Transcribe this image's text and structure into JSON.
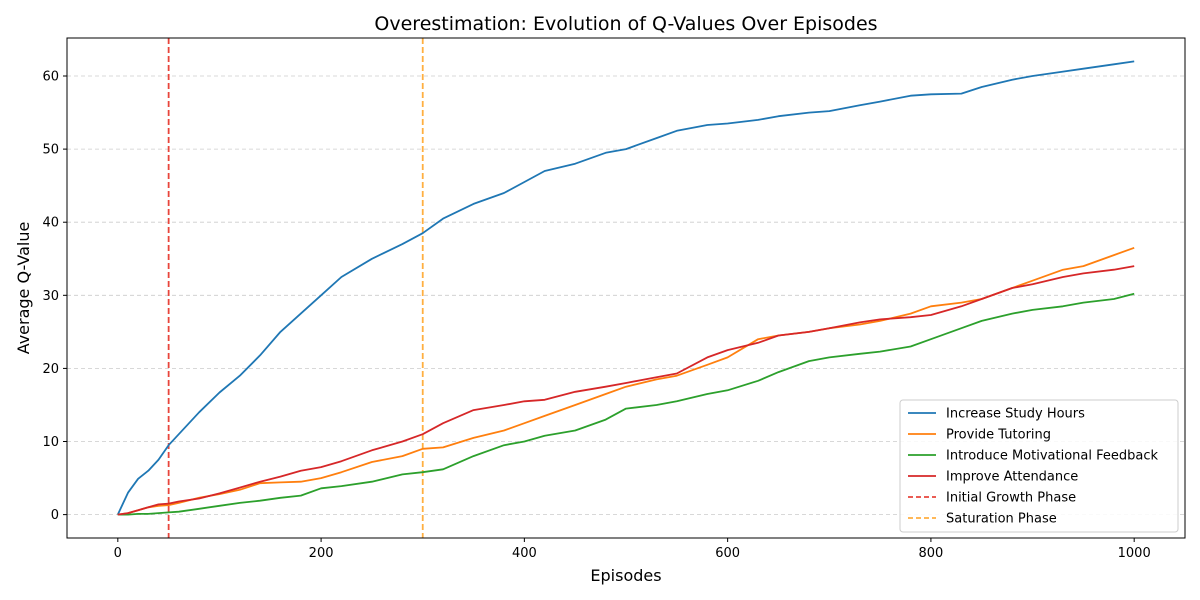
{
  "chart_data": {
    "type": "line",
    "title": "Overestimation: Evolution of Q-Values Over Episodes",
    "xlabel": "Episodes",
    "ylabel": "Average Q-Value",
    "xlim": [
      -50,
      1050
    ],
    "ylim": [
      -3.2,
      65.2
    ],
    "xticks": [
      0,
      200,
      400,
      600,
      800,
      1000
    ],
    "yticks": [
      0,
      10,
      20,
      30,
      40,
      50,
      60
    ],
    "grid": "y-dashed",
    "legend_position": "lower-right",
    "x": [
      0,
      10,
      20,
      30,
      40,
      50,
      60,
      80,
      100,
      120,
      140,
      160,
      180,
      200,
      220,
      250,
      280,
      300,
      320,
      350,
      380,
      400,
      420,
      450,
      480,
      500,
      530,
      550,
      580,
      600,
      630,
      650,
      680,
      700,
      730,
      750,
      780,
      800,
      830,
      850,
      880,
      900,
      930,
      950,
      980,
      1000
    ],
    "series": [
      {
        "name": "Increase Study Hours",
        "color": "#1f77b4",
        "style": "solid",
        "values": [
          0,
          3,
          4.9,
          6,
          7.5,
          9.5,
          11,
          14,
          16.7,
          19,
          21.8,
          25,
          27.5,
          30,
          32.5,
          35,
          37,
          38.5,
          40.5,
          42.5,
          44,
          45.5,
          47,
          48,
          49.5,
          50,
          51.5,
          52.5,
          53.3,
          53.5,
          54,
          54.5,
          55,
          55.2,
          56,
          56.5,
          57.3,
          57.5,
          57.6,
          58.5,
          59.5,
          60,
          60.6,
          61,
          61.6,
          62
        ]
      },
      {
        "name": "Provide Tutoring",
        "color": "#ff7f0e",
        "style": "solid",
        "values": [
          0,
          0.2,
          0.6,
          1.0,
          1.2,
          1.3,
          1.6,
          2.3,
          2.8,
          3.4,
          4.3,
          4.4,
          4.5,
          5.0,
          5.8,
          7.2,
          8.0,
          9.0,
          9.2,
          10.5,
          11.5,
          12.5,
          13.5,
          15.0,
          16.5,
          17.5,
          18.5,
          19.0,
          20.5,
          21.5,
          24.0,
          24.5,
          25.0,
          25.5,
          26.0,
          26.5,
          27.5,
          28.5,
          29.0,
          29.5,
          31.0,
          32.0,
          33.5,
          34.0,
          35.5,
          36.5
        ]
      },
      {
        "name": "Introduce Motivational Feedback",
        "color": "#2ca02c",
        "style": "solid",
        "values": [
          0,
          0,
          0.1,
          0.1,
          0.2,
          0.3,
          0.4,
          0.8,
          1.2,
          1.6,
          1.9,
          2.3,
          2.6,
          3.6,
          3.9,
          4.5,
          5.5,
          5.8,
          6.2,
          8.0,
          9.5,
          10.0,
          10.8,
          11.5,
          13.0,
          14.5,
          15.0,
          15.5,
          16.5,
          17.0,
          18.3,
          19.5,
          21.0,
          21.5,
          22.0,
          22.3,
          23.0,
          24.0,
          25.5,
          26.5,
          27.5,
          28.0,
          28.5,
          29.0,
          29.5,
          30.2
        ]
      },
      {
        "name": "Improve Attendance",
        "color": "#d62728",
        "style": "solid",
        "values": [
          0,
          0.2,
          0.6,
          1.0,
          1.4,
          1.5,
          1.8,
          2.2,
          2.9,
          3.7,
          4.5,
          5.2,
          6.0,
          6.5,
          7.3,
          8.8,
          10.0,
          11.0,
          12.5,
          14.3,
          15.0,
          15.5,
          15.7,
          16.8,
          17.5,
          18.0,
          18.8,
          19.3,
          21.5,
          22.5,
          23.5,
          24.5,
          25.0,
          25.5,
          26.3,
          26.7,
          27.0,
          27.3,
          28.5,
          29.5,
          31.0,
          31.5,
          32.5,
          33.0,
          33.5,
          34.0
        ]
      }
    ],
    "vlines": [
      {
        "name": "Initial Growth Phase",
        "x": 50,
        "color": "#e8453c",
        "style": "dashed"
      },
      {
        "name": "Saturation Phase",
        "x": 300,
        "color": "#ffaf40",
        "style": "dashed"
      }
    ]
  }
}
